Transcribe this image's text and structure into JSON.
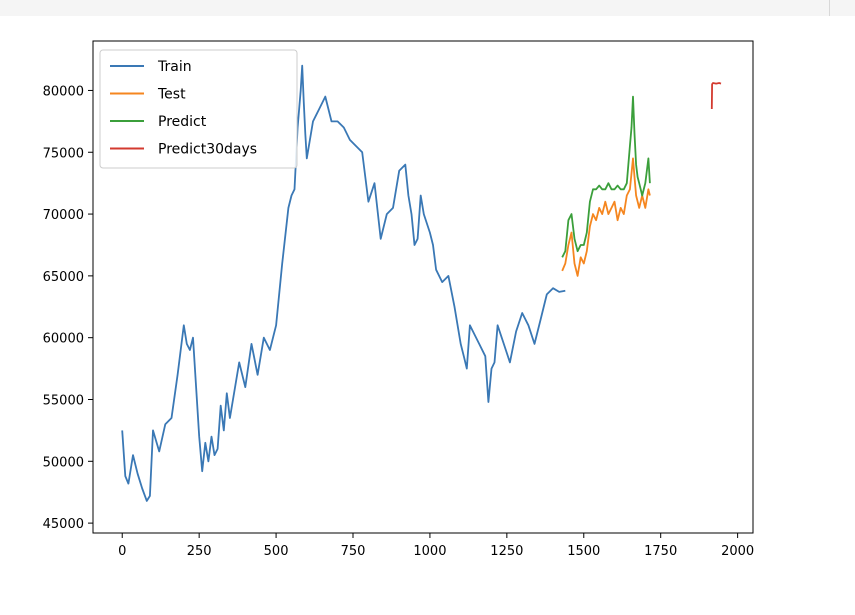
{
  "chart_data": {
    "type": "line",
    "title": "",
    "xlabel": "",
    "ylabel": "",
    "xlim": [
      -95,
      2050
    ],
    "ylim": [
      44200,
      84000
    ],
    "x_ticks": [
      {
        "value": 0,
        "label": "0"
      },
      {
        "value": 250,
        "label": "250"
      },
      {
        "value": 500,
        "label": "500"
      },
      {
        "value": 750,
        "label": "750"
      },
      {
        "value": 1000,
        "label": "1000"
      },
      {
        "value": 1250,
        "label": "1250"
      },
      {
        "value": 1500,
        "label": "1500"
      },
      {
        "value": 1750,
        "label": "1750"
      },
      {
        "value": 2000,
        "label": "2000"
      }
    ],
    "y_ticks": [
      {
        "value": 45000,
        "label": "45000"
      },
      {
        "value": 50000,
        "label": "50000"
      },
      {
        "value": 55000,
        "label": "55000"
      },
      {
        "value": 60000,
        "label": "60000"
      },
      {
        "value": 65000,
        "label": "65000"
      },
      {
        "value": 70000,
        "label": "70000"
      },
      {
        "value": 75000,
        "label": "75000"
      },
      {
        "value": 80000,
        "label": "80000"
      }
    ],
    "grid": false,
    "legend_position": "top-left",
    "series": [
      {
        "name": "Train",
        "color": "#3a78b5",
        "x": [
          0,
          10,
          20,
          35,
          50,
          65,
          80,
          90,
          100,
          120,
          140,
          160,
          180,
          200,
          210,
          220,
          230,
          240,
          250,
          260,
          270,
          280,
          290,
          300,
          310,
          320,
          330,
          340,
          350,
          360,
          380,
          400,
          420,
          440,
          460,
          480,
          500,
          520,
          540,
          550,
          560,
          570,
          580,
          585,
          590,
          595,
          600,
          610,
          620,
          630,
          640,
          660,
          680,
          700,
          720,
          740,
          760,
          780,
          800,
          820,
          840,
          860,
          880,
          900,
          920,
          930,
          940,
          950,
          960,
          970,
          980,
          1000,
          1010,
          1020,
          1040,
          1060,
          1080,
          1100,
          1110,
          1120,
          1130,
          1140,
          1160,
          1180,
          1190,
          1200,
          1210,
          1220,
          1240,
          1260,
          1280,
          1300,
          1320,
          1340,
          1360,
          1380,
          1400,
          1420,
          1440
        ],
        "y": [
          52500,
          48800,
          48200,
          50500,
          49000,
          47800,
          46800,
          47200,
          52500,
          50800,
          53000,
          53500,
          57000,
          61000,
          59500,
          59000,
          60000,
          56000,
          52000,
          49200,
          51500,
          50000,
          52000,
          50500,
          51000,
          54500,
          52500,
          55500,
          53500,
          55000,
          58000,
          56000,
          59500,
          57000,
          60000,
          59000,
          61000,
          66000,
          70500,
          71500,
          72000,
          77000,
          80000,
          82000,
          79000,
          76500,
          74500,
          76000,
          77500,
          78000,
          78500,
          79500,
          77500,
          77500,
          77000,
          76000,
          75500,
          75000,
          71000,
          72500,
          68000,
          70000,
          70500,
          73500,
          74000,
          71500,
          70000,
          67500,
          68000,
          71500,
          70000,
          68500,
          67500,
          65500,
          64500,
          65000,
          62500,
          59500,
          58500,
          57500,
          61000,
          60500,
          59500,
          58500,
          54800,
          57500,
          58000,
          61000,
          59500,
          58000,
          60500,
          62000,
          61000,
          59500,
          61500,
          63500,
          64000,
          63700,
          63800
        ]
      },
      {
        "name": "Test",
        "color": "#f5861f",
        "x": [
          1430,
          1440,
          1450,
          1460,
          1470,
          1480,
          1490,
          1500,
          1510,
          1520,
          1530,
          1540,
          1550,
          1560,
          1570,
          1580,
          1590,
          1600,
          1610,
          1620,
          1630,
          1640,
          1650,
          1660,
          1665,
          1670,
          1680,
          1690,
          1700,
          1710,
          1715
        ],
        "y": [
          65400,
          66000,
          67500,
          68500,
          66000,
          65000,
          66500,
          66000,
          67000,
          69000,
          70000,
          69500,
          70500,
          70000,
          71000,
          70000,
          70500,
          71000,
          69500,
          70500,
          70000,
          71500,
          72000,
          74500,
          73000,
          71500,
          70500,
          71500,
          70500,
          72000,
          71500
        ]
      },
      {
        "name": "Predict",
        "color": "#3b9f3b",
        "x": [
          1430,
          1440,
          1450,
          1460,
          1470,
          1480,
          1490,
          1500,
          1510,
          1520,
          1530,
          1540,
          1550,
          1560,
          1570,
          1580,
          1590,
          1600,
          1610,
          1620,
          1630,
          1640,
          1650,
          1655,
          1660,
          1665,
          1670,
          1675,
          1680,
          1690,
          1700,
          1710,
          1715
        ],
        "y": [
          66500,
          67000,
          69500,
          70000,
          68000,
          67000,
          67500,
          67500,
          68500,
          71000,
          72000,
          72000,
          72300,
          72000,
          72000,
          72500,
          72000,
          72000,
          72300,
          72000,
          72000,
          72500,
          75500,
          77000,
          79500,
          76500,
          74000,
          73000,
          72500,
          71500,
          72500,
          74500,
          72500
        ]
      },
      {
        "name": "Predict30days",
        "color": "#d33a2f",
        "x": [
          1916,
          1917,
          1920,
          1930,
          1940,
          1946
        ],
        "y": [
          78500,
          80500,
          80600,
          80550,
          80600,
          80550
        ]
      }
    ]
  }
}
